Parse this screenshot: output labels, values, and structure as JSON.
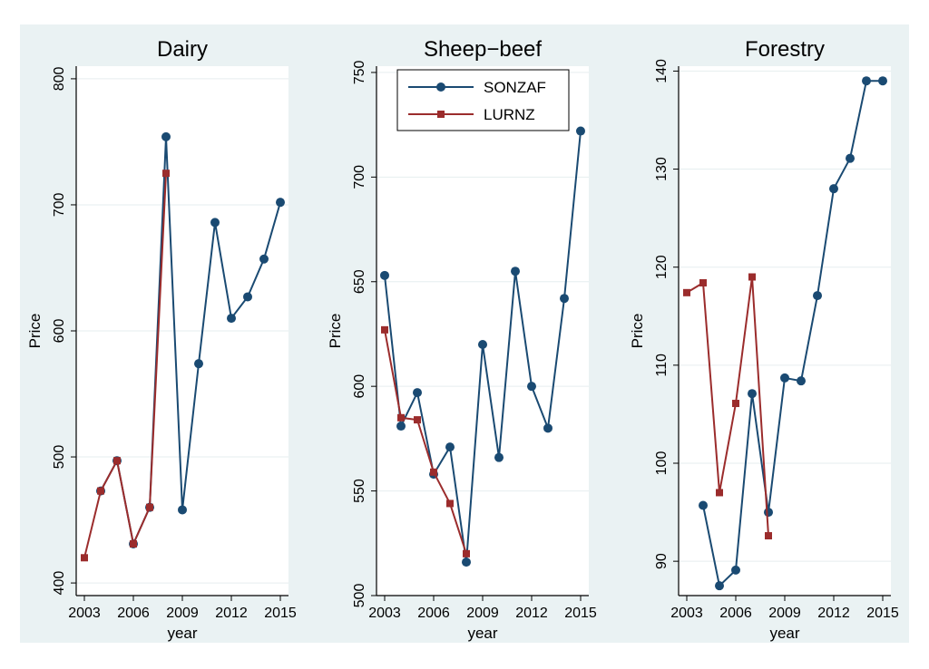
{
  "figure": {
    "background": "#eaf2f3",
    "plot_background": "#ffffff",
    "grid_color": "#e6eeef",
    "sonzaf_color": "#1a4a72",
    "lurnz_color": "#9b2c2c"
  },
  "legend": {
    "sonzaf": "SONZAF",
    "lurnz": "LURNZ"
  },
  "chart_data": [
    {
      "type": "line",
      "title": "Dairy",
      "xlabel": "year",
      "ylabel": "Price",
      "xlim": [
        2002.5,
        2015.5
      ],
      "ylim": [
        390,
        810
      ],
      "xticks": [
        2003,
        2006,
        2009,
        2012,
        2015
      ],
      "yticks": [
        400,
        500,
        600,
        700,
        800
      ],
      "series": [
        {
          "name": "SONZAF",
          "x": [
            2004,
            2005,
            2006,
            2007,
            2008,
            2009,
            2010,
            2011,
            2012,
            2013,
            2014,
            2015
          ],
          "values": [
            473,
            497,
            431,
            460,
            754,
            458,
            574,
            686,
            610,
            627,
            657,
            702
          ]
        },
        {
          "name": "LURNZ",
          "x": [
            2003,
            2004,
            2005,
            2006,
            2007,
            2008
          ],
          "values": [
            420,
            473,
            497,
            431,
            460,
            725
          ]
        }
      ]
    },
    {
      "type": "line",
      "title": "Sheep−beef",
      "xlabel": "year",
      "ylabel": "Price",
      "xlim": [
        2002.5,
        2015.5
      ],
      "ylim": [
        500,
        753
      ],
      "xticks": [
        2003,
        2006,
        2009,
        2012,
        2015
      ],
      "yticks": [
        500,
        550,
        600,
        650,
        700,
        750
      ],
      "legend_position": "top-center",
      "series": [
        {
          "name": "SONZAF",
          "x": [
            2003,
            2004,
            2005,
            2006,
            2007,
            2008,
            2009,
            2010,
            2011,
            2012,
            2013,
            2014,
            2015
          ],
          "values": [
            653,
            581,
            597,
            558,
            571,
            516,
            620,
            566,
            655,
            600,
            580,
            642,
            722
          ]
        },
        {
          "name": "LURNZ",
          "x": [
            2003,
            2004,
            2005,
            2006,
            2007,
            2008
          ],
          "values": [
            627,
            585,
            584,
            559,
            544,
            520
          ]
        }
      ]
    },
    {
      "type": "line",
      "title": "Forestry",
      "xlabel": "year",
      "ylabel": "Price",
      "xlim": [
        2002.5,
        2015.5
      ],
      "ylim": [
        86.5,
        140.5
      ],
      "xticks": [
        2003,
        2006,
        2009,
        2012,
        2015
      ],
      "yticks": [
        90,
        100,
        110,
        120,
        130,
        140
      ],
      "series": [
        {
          "name": "SONZAF",
          "x": [
            2004,
            2005,
            2006,
            2007,
            2008,
            2009,
            2010,
            2011,
            2012,
            2013,
            2014,
            2015
          ],
          "values": [
            95.7,
            87.5,
            89.1,
            107.1,
            95.0,
            108.7,
            108.4,
            117.1,
            128.0,
            131.1,
            139.0,
            139.0
          ]
        },
        {
          "name": "LURNZ",
          "x": [
            2003,
            2004,
            2005,
            2006,
            2007,
            2008
          ],
          "values": [
            117.4,
            118.4,
            97.0,
            106.1,
            119.0,
            92.6
          ]
        }
      ]
    }
  ]
}
